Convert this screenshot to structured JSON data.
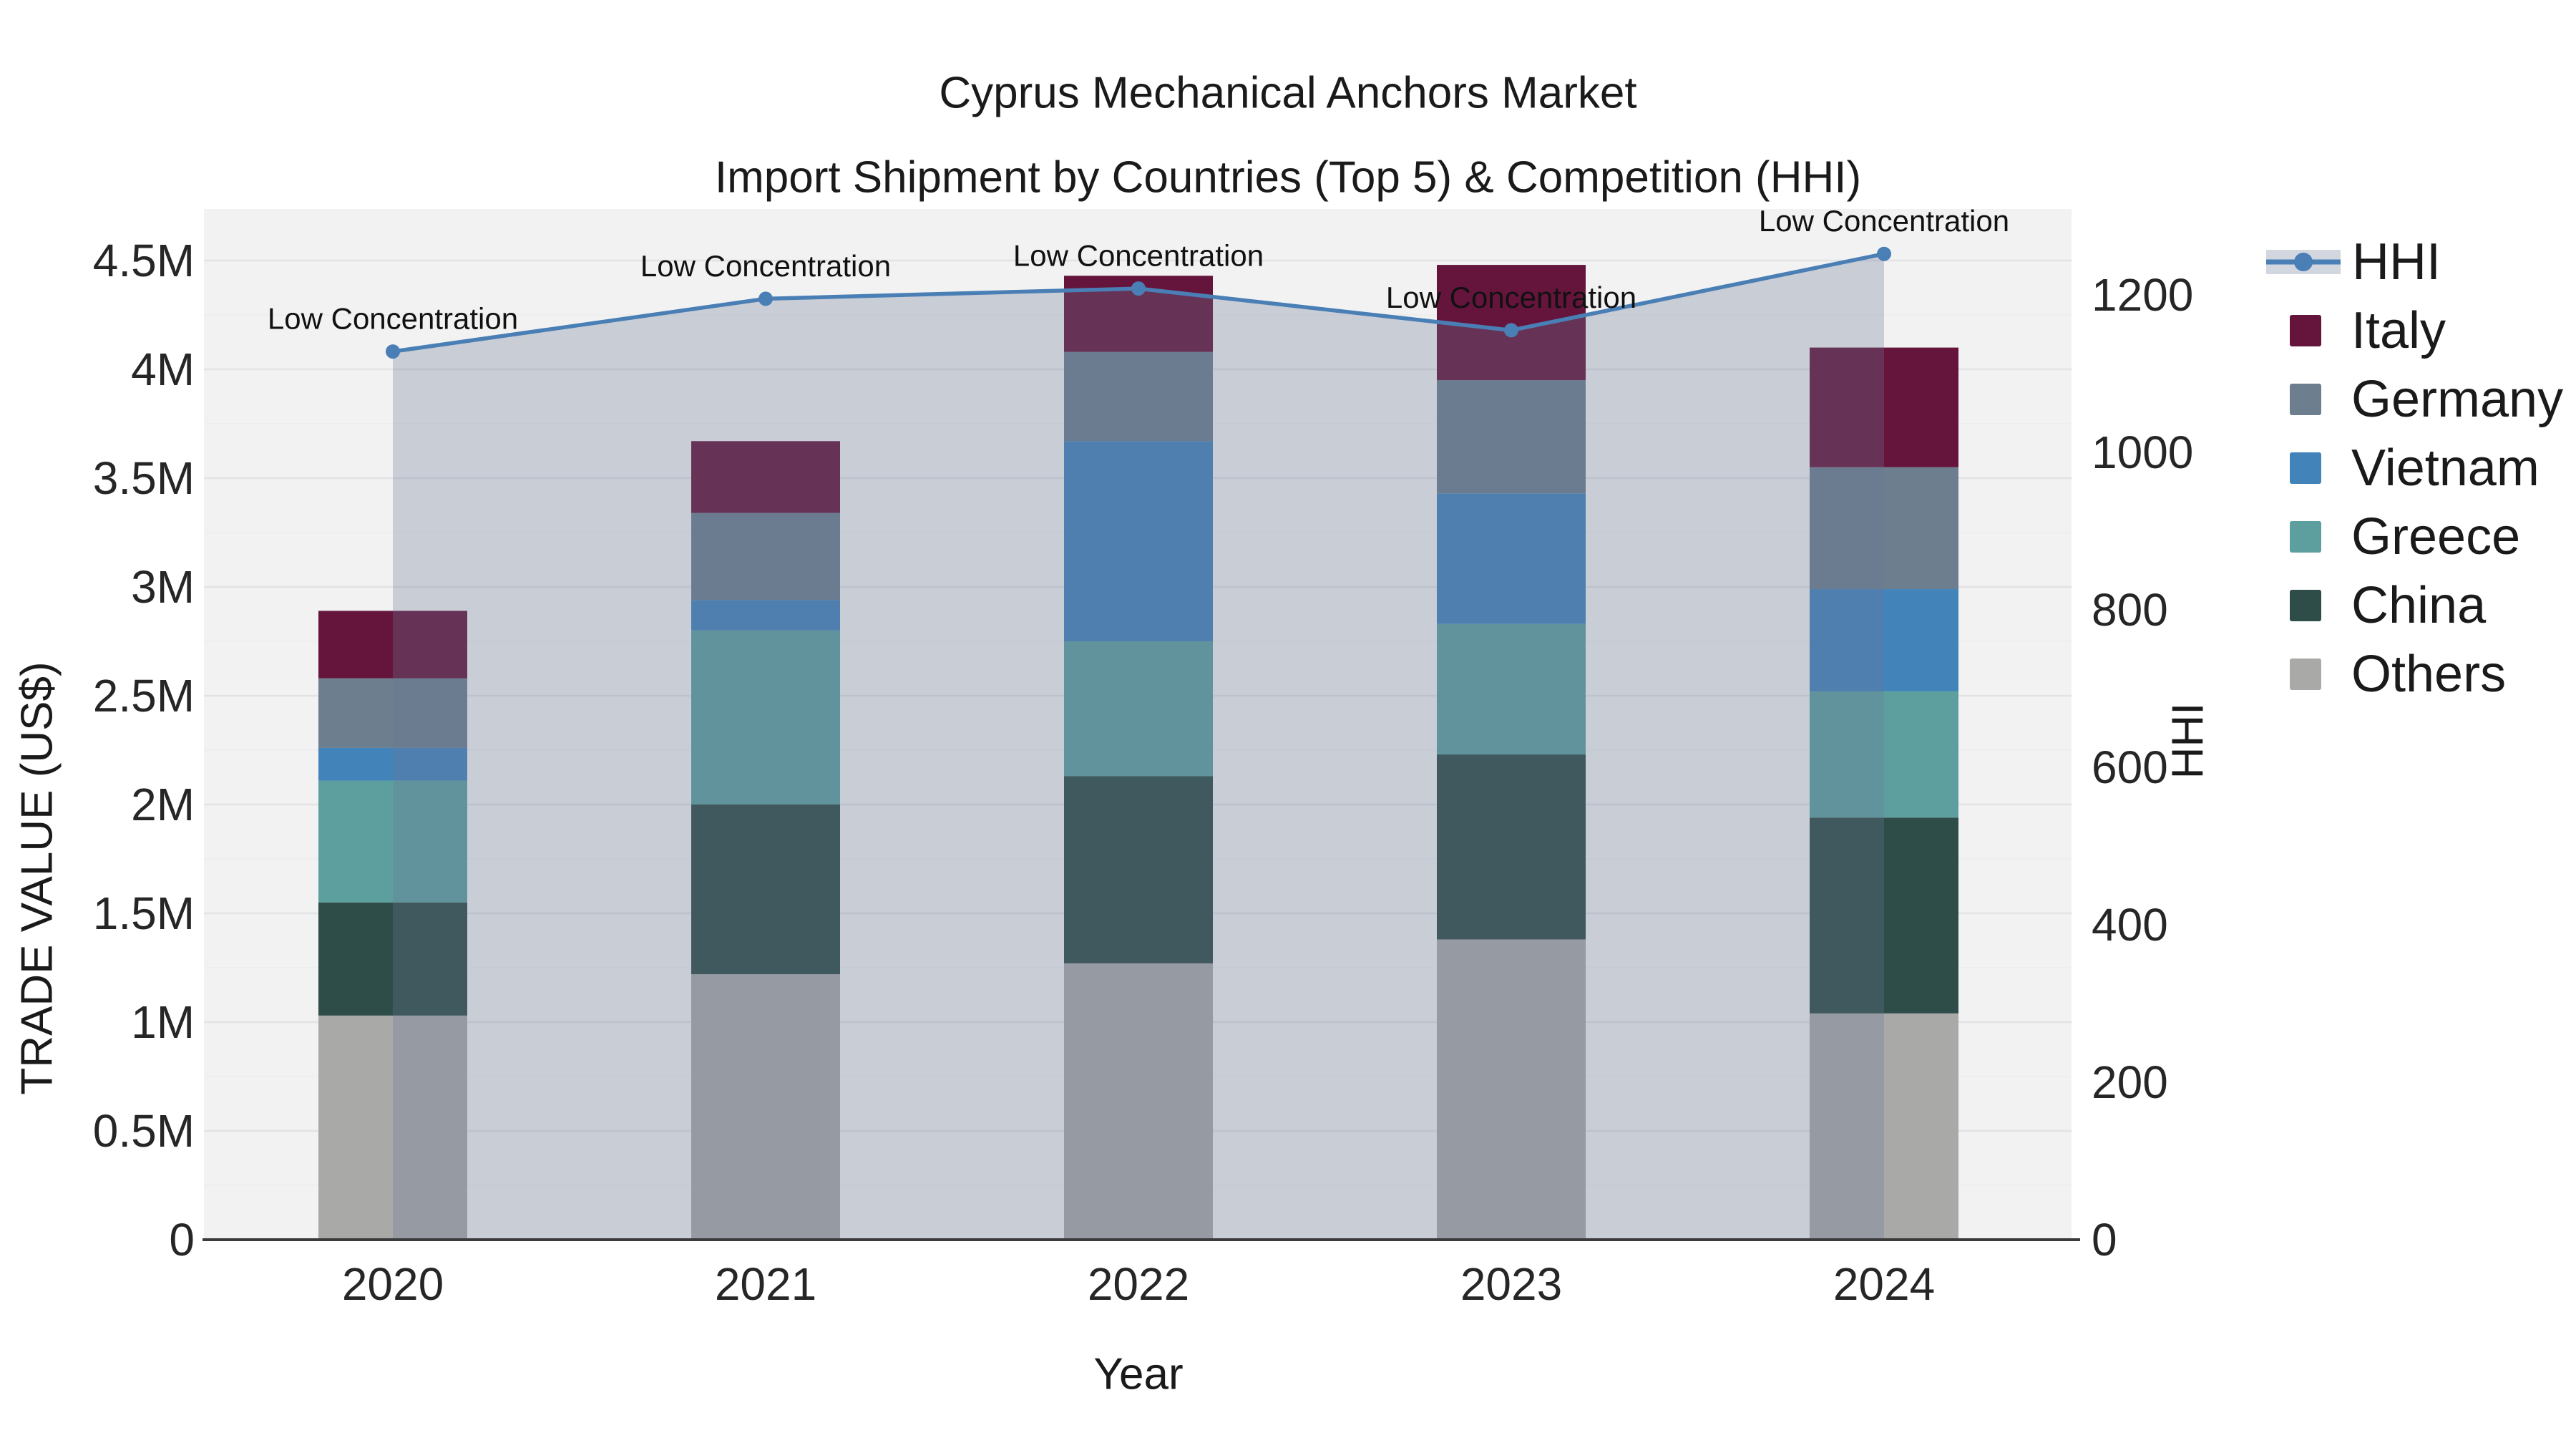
{
  "title": {
    "line1": "Cyprus Mechanical Anchors Market",
    "line2": "Import Shipment by Countries (Top 5) & Competition (HHI)"
  },
  "axes": {
    "y_left": {
      "title": "TRADE VALUE (US$)",
      "tick_labels": [
        "0",
        "0.5M",
        "1M",
        "1.5M",
        "2M",
        "2.5M",
        "3M",
        "3.5M",
        "4M",
        "4.5M"
      ],
      "tick_values_millions": [
        0,
        0.5,
        1,
        1.5,
        2,
        2.5,
        3,
        3.5,
        4,
        4.5
      ]
    },
    "y_right": {
      "title": "HHI",
      "tick_labels": [
        "0",
        "200",
        "400",
        "600",
        "800",
        "1000",
        "1200"
      ],
      "tick_values": [
        0,
        200,
        400,
        600,
        800,
        1000,
        1200
      ]
    },
    "x": {
      "title": "Year",
      "tick_labels": [
        "2020",
        "2021",
        "2022",
        "2023",
        "2024"
      ]
    }
  },
  "legend": {
    "items": [
      {
        "label": "HHI",
        "type": "line",
        "color": "#4a7fb5"
      },
      {
        "label": "Italy",
        "type": "swatch",
        "color": "#65153c"
      },
      {
        "label": "Germany",
        "type": "swatch",
        "color": "#6d7f8f"
      },
      {
        "label": "Vietnam",
        "type": "swatch",
        "color": "#4283ba"
      },
      {
        "label": "Greece",
        "type": "swatch",
        "color": "#5c9f9e"
      },
      {
        "label": "China",
        "type": "swatch",
        "color": "#2f4d48"
      },
      {
        "label": "Others",
        "type": "swatch",
        "color": "#a9aaa8"
      }
    ]
  },
  "chart_data": {
    "type": "bar-stacked+line",
    "categories": [
      "2020",
      "2021",
      "2022",
      "2023",
      "2024"
    ],
    "bar_unit": "US$ millions",
    "series": [
      {
        "name": "Others",
        "color": "#a9aaa8",
        "values": [
          1.03,
          1.22,
          1.27,
          1.38,
          1.04
        ]
      },
      {
        "name": "China",
        "color": "#2f4d48",
        "values": [
          0.52,
          0.78,
          0.86,
          0.85,
          0.9
        ]
      },
      {
        "name": "Greece",
        "color": "#5c9f9e",
        "values": [
          0.56,
          0.8,
          0.62,
          0.6,
          0.58
        ]
      },
      {
        "name": "Vietnam",
        "color": "#4283ba",
        "values": [
          0.15,
          0.14,
          0.92,
          0.6,
          0.47
        ]
      },
      {
        "name": "Germany",
        "color": "#6d7f8f",
        "values": [
          0.32,
          0.4,
          0.41,
          0.52,
          0.56
        ]
      },
      {
        "name": "Italy",
        "color": "#65153c",
        "values": [
          0.31,
          0.33,
          0.35,
          0.53,
          0.55
        ]
      }
    ],
    "line_series": {
      "name": "HHI",
      "axis": "right",
      "values": [
        1128,
        1195,
        1208,
        1155,
        1252
      ],
      "color": "#4a7fb5",
      "area_fill": "rgba(106,119,148,0.30)"
    },
    "annotations": [
      {
        "x": "2020",
        "text": "Low Concentration"
      },
      {
        "x": "2021",
        "text": "Low Concentration"
      },
      {
        "x": "2022",
        "text": "Low Concentration"
      },
      {
        "x": "2023",
        "text": "Low Concentration"
      },
      {
        "x": "2024",
        "text": "Low Concentration"
      }
    ],
    "ylim_left_millions": [
      0,
      4.7368
    ],
    "ylim_right": [
      0,
      1309
    ],
    "grid": true,
    "legend_position": "right",
    "plot_bg_color": "#f2f2f3",
    "major_grid_color": "#e3e3e5",
    "minor_grid_color": "#ececee",
    "axis_line_color": "#3b3b3b"
  }
}
